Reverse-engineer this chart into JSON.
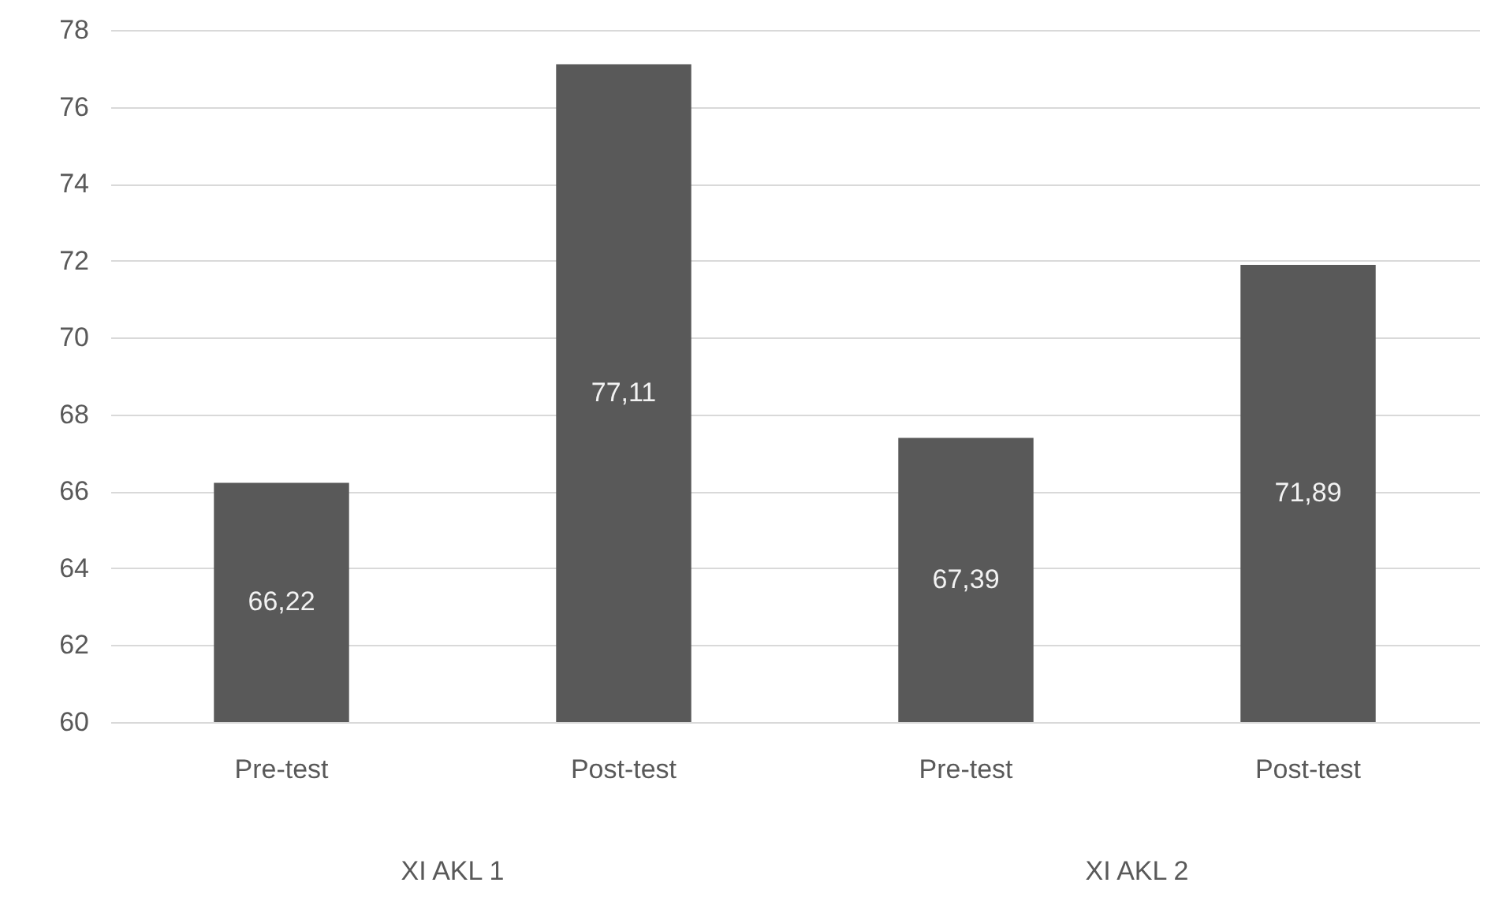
{
  "chart_data": {
    "type": "bar",
    "categories": [
      "Pre-test",
      "Post-test",
      "Pre-test",
      "Post-test"
    ],
    "values": [
      66.22,
      77.11,
      67.39,
      71.89
    ],
    "value_labels": [
      "66,22",
      "77,11",
      "67,39",
      "71,89"
    ],
    "color": "#595959",
    "ylim": [
      60,
      78
    ],
    "yticks": [
      60,
      62,
      64,
      66,
      68,
      70,
      72,
      74,
      76,
      78
    ],
    "grid": "y",
    "annotations": [
      "XI AKL 1",
      "XI AKL 2"
    ]
  }
}
